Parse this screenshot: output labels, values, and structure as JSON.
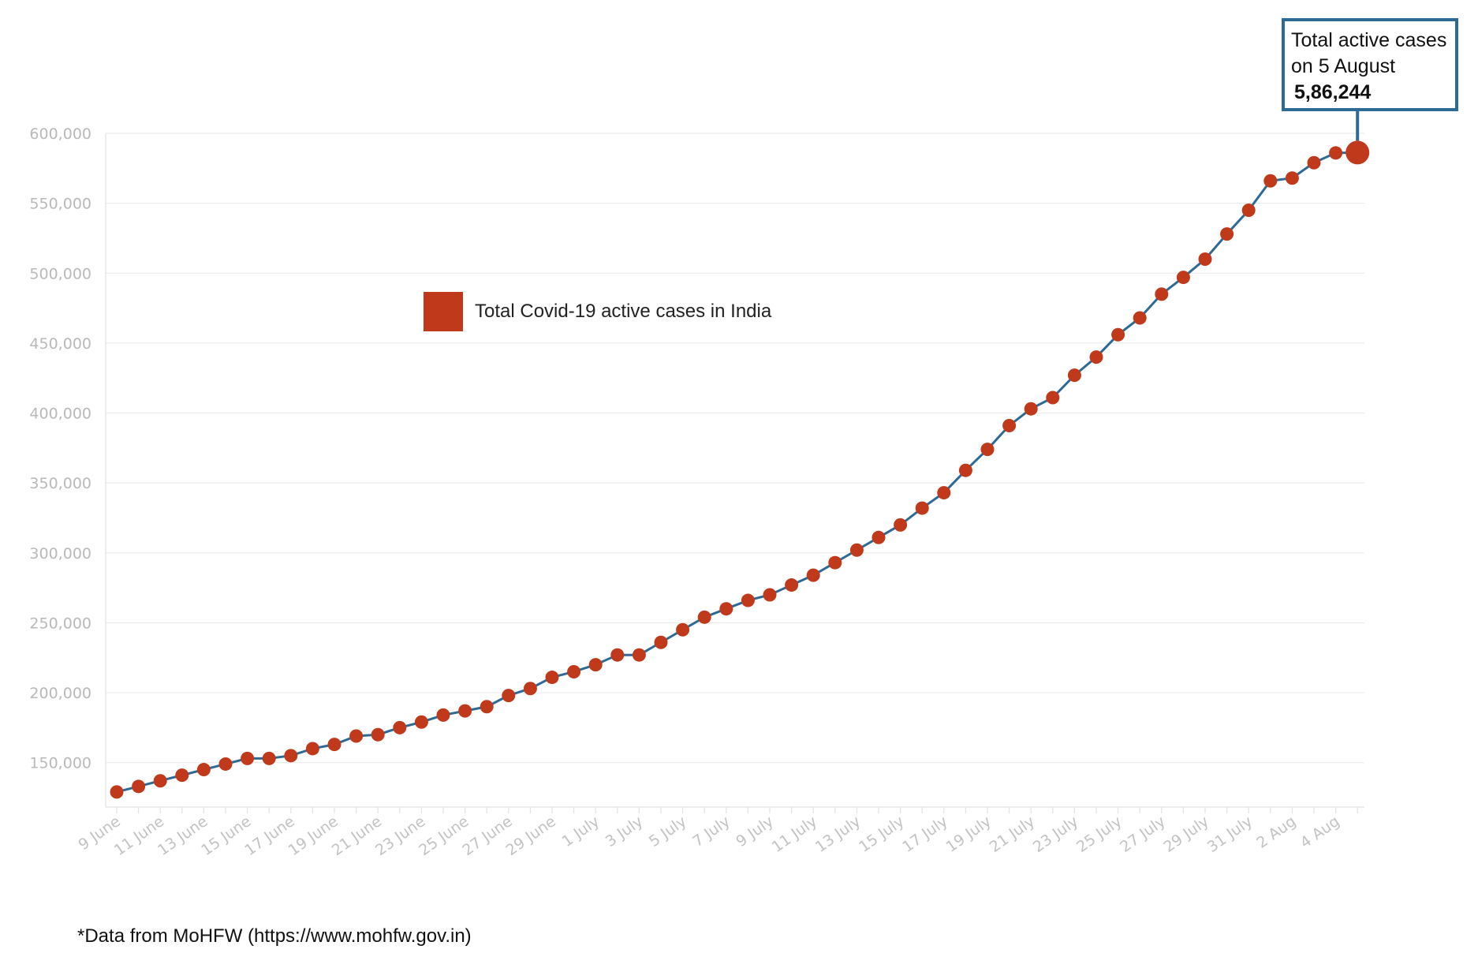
{
  "colors": {
    "line": "#2d6a96",
    "marker": "#c0391b",
    "callout_border": "#2d6a96"
  },
  "legend": {
    "label": "Total Covid-19 active cases in India"
  },
  "callout": {
    "line1": "Total active cases",
    "line2": "on 5 August",
    "value": "5,86,244"
  },
  "source_note": "*Data from MoHFW (https://www.mohfw.gov.in)",
  "chart_data": {
    "type": "line",
    "title": "",
    "xlabel": "",
    "ylabel": "",
    "ylim": [
      125000,
      600000
    ],
    "grid": true,
    "legend_position": "upper-left",
    "y_ticks": [
      "150,000",
      "200,000",
      "250,000",
      "300,000",
      "350,000",
      "400,000",
      "450,000",
      "500,000",
      "550,000",
      "600,000"
    ],
    "x_tick_labels": [
      "9 June",
      "11 June",
      "13 June",
      "15 June",
      "17 June",
      "19 June",
      "21 June",
      "23 June",
      "25 June",
      "27 June",
      "29 June",
      "1 July",
      "3 July",
      "5 July",
      "7 July",
      "9 July",
      "11 July",
      "13 July",
      "15 July",
      "17 July",
      "19 July",
      "21 July",
      "23 July",
      "25 July",
      "27 July",
      "29 July",
      "31 July",
      "2 Aug",
      "4 Aug"
    ],
    "series": [
      {
        "name": "Total Covid-19 active cases in India",
        "dates": [
          "9 June",
          "10 June",
          "11 June",
          "12 June",
          "13 June",
          "14 June",
          "15 June",
          "16 June",
          "17 June",
          "18 June",
          "19 June",
          "20 June",
          "21 June",
          "22 June",
          "23 June",
          "24 June",
          "25 June",
          "26 June",
          "27 June",
          "28 June",
          "29 June",
          "30 June",
          "1 July",
          "2 July",
          "3 July",
          "4 July",
          "5 July",
          "6 July",
          "7 July",
          "8 July",
          "9 July",
          "10 July",
          "11 July",
          "12 July",
          "13 July",
          "14 July",
          "15 July",
          "16 July",
          "17 July",
          "18 July",
          "19 July",
          "20 July",
          "21 July",
          "22 July",
          "23 July",
          "24 July",
          "25 July",
          "26 July",
          "27 July",
          "28 July",
          "29 July",
          "30 July",
          "31 July",
          "1 Aug",
          "2 Aug",
          "3 Aug",
          "4 Aug",
          "5 Aug"
        ],
        "values": [
          129000,
          133000,
          137000,
          141000,
          145000,
          149000,
          153000,
          153000,
          155000,
          160000,
          163000,
          169000,
          170000,
          175000,
          179000,
          184000,
          187000,
          190000,
          198000,
          203000,
          211000,
          215000,
          220000,
          227000,
          227000,
          236000,
          245000,
          254000,
          260000,
          266000,
          270000,
          277000,
          284000,
          293000,
          302000,
          311000,
          320000,
          332000,
          343000,
          359000,
          374000,
          391000,
          403000,
          411000,
          427000,
          440000,
          456000,
          468000,
          485000,
          497000,
          510000,
          528000,
          545000,
          566000,
          568000,
          579000,
          586000,
          586244
        ]
      }
    ]
  }
}
